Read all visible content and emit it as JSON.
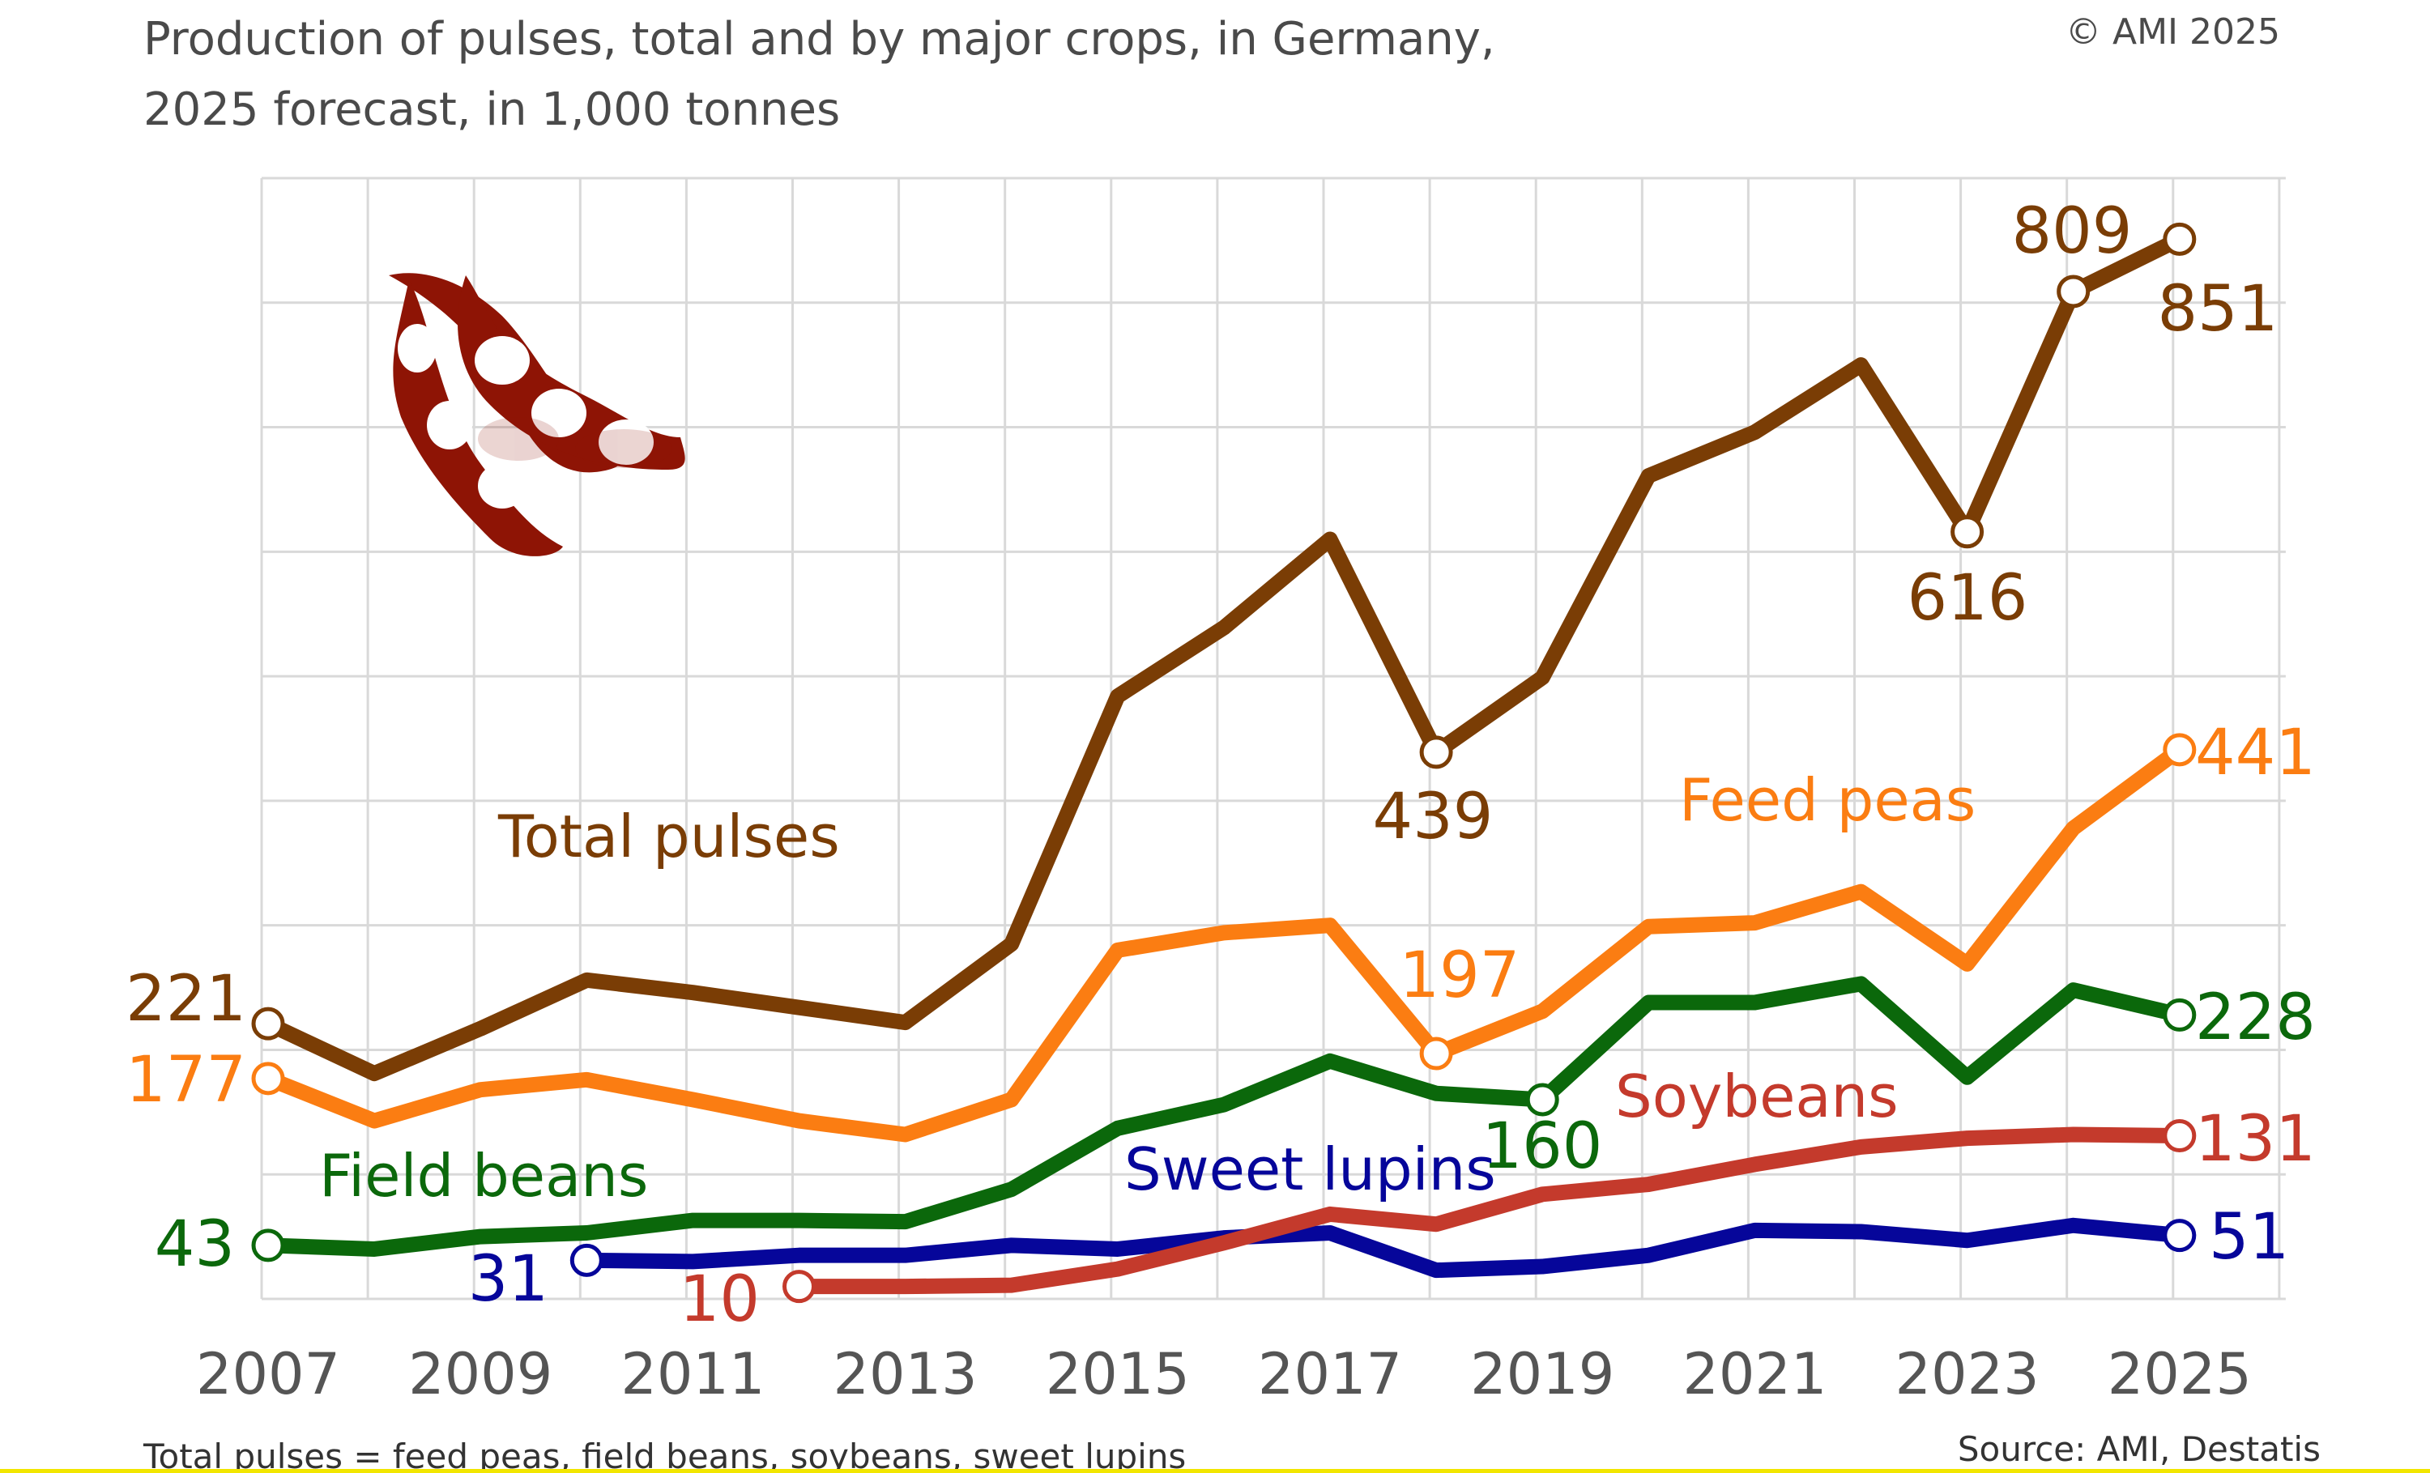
{
  "chart_data": {
    "type": "line",
    "title": "Production of pulses, total and by major crops, in Germany,",
    "subtitle": "2025 forecast, in 1,000 tonnes",
    "copyright": "© AMI 2025",
    "footnote": "Total pulses = feed peas, field beans, soybeans, sweet lupins",
    "source": "Source: AMI, Destatis",
    "xlabel": "",
    "ylabel": "1,000 tonnes",
    "ylim": [
      0,
      900
    ],
    "grid": true,
    "x_tick_labels": [
      "2007",
      "2009",
      "2011",
      "2013",
      "2015",
      "2017",
      "2019",
      "2021",
      "2023",
      "2025"
    ],
    "x": [
      2007,
      2008,
      2009,
      2010,
      2011,
      2012,
      2013,
      2014,
      2015,
      2016,
      2017,
      2018,
      2019,
      2020,
      2021,
      2022,
      2023,
      2024,
      2025
    ],
    "series": [
      {
        "name": "Total pulses",
        "color": "#7a3d05",
        "values": [
          221,
          181,
          217,
          256,
          246,
          234,
          222,
          285,
          484,
          539,
          610,
          439,
          499,
          661,
          696,
          750,
          616,
          809,
          851
        ],
        "labeled": [
          [
            2007,
            "221"
          ],
          [
            2018,
            "439"
          ],
          [
            2023,
            "616"
          ],
          [
            2024,
            "809"
          ],
          [
            2025,
            "851"
          ]
        ]
      },
      {
        "name": "Feed peas",
        "color": "#fb7d12",
        "values": [
          177,
          143,
          168,
          176,
          160,
          143,
          132,
          160,
          280,
          294,
          300,
          197,
          231,
          299,
          302,
          327,
          269,
          378,
          441
        ],
        "labeled": [
          [
            2007,
            "177"
          ],
          [
            2018,
            "197"
          ],
          [
            2025,
            "441"
          ]
        ]
      },
      {
        "name": "Field beans",
        "color": "#0b680b",
        "values": [
          43,
          40,
          50,
          53,
          63,
          63,
          62,
          88,
          137,
          156,
          191,
          165,
          160,
          238,
          238,
          253,
          178,
          248,
          228
        ],
        "labeled": [
          [
            2007,
            "43"
          ],
          [
            2019,
            "160"
          ],
          [
            2025,
            "228"
          ]
        ]
      },
      {
        "name": "Soybeans",
        "color": "#c43a2c",
        "values": [
          null,
          null,
          null,
          null,
          null,
          10,
          10,
          11,
          24,
          45,
          68,
          60,
          84,
          92,
          108,
          122,
          129,
          132,
          131
        ],
        "labeled": [
          [
            2012,
            "10"
          ],
          [
            2025,
            "131"
          ]
        ]
      },
      {
        "name": "Sweet lupins",
        "color": "#06069a",
        "values": [
          null,
          null,
          null,
          31,
          30,
          35,
          35,
          43,
          40,
          49,
          53,
          23,
          26,
          35,
          55,
          54,
          47,
          59,
          51
        ],
        "labeled": [
          [
            2010,
            "31"
          ],
          [
            2025,
            "51"
          ]
        ]
      }
    ]
  }
}
